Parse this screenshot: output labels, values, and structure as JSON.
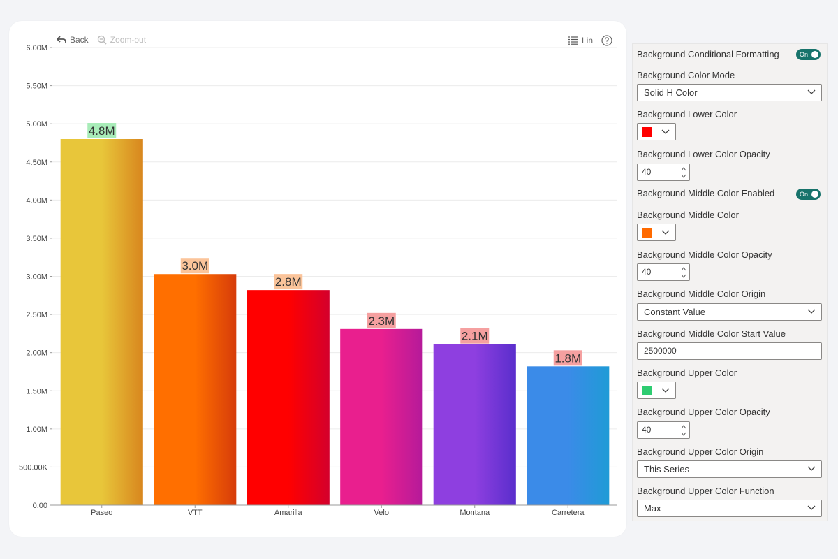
{
  "toolbar": {
    "back_label": "Back",
    "zoom_label": "Zoom-out",
    "scale_label": "Lin"
  },
  "chart_data": {
    "type": "bar",
    "categories": [
      "Paseo",
      "VTT",
      "Amarilla",
      "Velo",
      "Montana",
      "Carretera"
    ],
    "values": [
      4800000,
      3030000,
      2820000,
      2310000,
      2110000,
      1820000
    ],
    "data_labels": [
      "4.8M",
      "3.0M",
      "2.8M",
      "2.3M",
      "2.1M",
      "1.8M"
    ],
    "ylim": [
      0,
      6000000
    ],
    "y_ticks": [
      "0.00",
      "500.00K",
      "1.00M",
      "1.50M",
      "2.00M",
      "2.50M",
      "3.00M",
      "3.50M",
      "4.00M",
      "4.50M",
      "5.00M",
      "5.50M",
      "6.00M"
    ],
    "grid": true,
    "bar_colors": [
      [
        "#e8c63a",
        "#d8861e"
      ],
      [
        "#ff6f00",
        "#d63c0a"
      ],
      [
        "#ff0000",
        "#d4002c"
      ],
      [
        "#e91f8e",
        "#b51a9a"
      ],
      [
        "#8e3fe0",
        "#5a2ecc"
      ],
      [
        "#3b8be8",
        "#1f9bd6"
      ]
    ],
    "label_bg_colors": [
      "#a8ecb8",
      "#fbc49a",
      "#fbc49a",
      "#f5a0a0",
      "#f5a0a0",
      "#f5a0a0"
    ]
  },
  "panel": {
    "bg_conditional_formatting": {
      "label": "Background Conditional Formatting",
      "toggle": "On"
    },
    "bg_color_mode": {
      "label": "Background Color Mode",
      "value": "Solid H Color"
    },
    "bg_lower_color": {
      "label": "Background Lower Color",
      "color": "#ff0000"
    },
    "bg_lower_opacity": {
      "label": "Background Lower Color Opacity",
      "value": "40"
    },
    "bg_middle_enabled": {
      "label": "Background Middle Color Enabled",
      "toggle": "On"
    },
    "bg_middle_color": {
      "label": "Background Middle Color",
      "color": "#ff6a00"
    },
    "bg_middle_opacity": {
      "label": "Background Middle Color Opacity",
      "value": "40"
    },
    "bg_middle_origin": {
      "label": "Background Middle Color Origin",
      "value": "Constant Value"
    },
    "bg_middle_start": {
      "label": "Background Middle Color Start Value",
      "value": "2500000"
    },
    "bg_upper_color": {
      "label": "Background Upper Color",
      "color": "#2ecc71"
    },
    "bg_upper_opacity": {
      "label": "Background Upper Color Opacity",
      "value": "40"
    },
    "bg_upper_origin": {
      "label": "Background Upper Color Origin",
      "value": "This Series"
    },
    "bg_upper_function": {
      "label": "Background Upper Color Function",
      "value": "Max"
    }
  },
  "colors": {
    "toggle_on": "#17736b",
    "grid": "#ececec",
    "axis_text": "#444444"
  }
}
